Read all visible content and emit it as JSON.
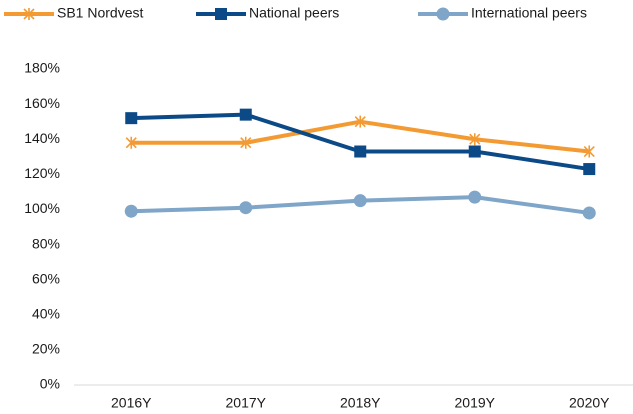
{
  "chart_data": {
    "type": "line",
    "categories": [
      "2016Y",
      "2017Y",
      "2018Y",
      "2019Y",
      "2020Y"
    ],
    "series": [
      {
        "name": "SB1 Nordvest",
        "color": "#f39a33",
        "marker": "asterisk",
        "values": [
          138,
          138,
          150,
          140,
          133
        ]
      },
      {
        "name": "National peers",
        "color": "#0b4a87",
        "marker": "square",
        "values": [
          152,
          154,
          133,
          133,
          123
        ]
      },
      {
        "name": "International peers",
        "color": "#7fa5c8",
        "marker": "circle",
        "values": [
          99,
          101,
          105,
          107,
          98
        ]
      }
    ],
    "ylim": [
      0,
      180
    ],
    "yticks": [
      {
        "value": 0,
        "label": "0%"
      },
      {
        "value": 20,
        "label": "20%"
      },
      {
        "value": 40,
        "label": "40%"
      },
      {
        "value": 60,
        "label": "60%"
      },
      {
        "value": 80,
        "label": "80%"
      },
      {
        "value": 100,
        "label": "100%"
      },
      {
        "value": 120,
        "label": "120%"
      },
      {
        "value": 140,
        "label": "140%"
      },
      {
        "value": 160,
        "label": "160%"
      },
      {
        "value": 180,
        "label": "180%"
      }
    ],
    "grid": false,
    "legend": "top"
  }
}
